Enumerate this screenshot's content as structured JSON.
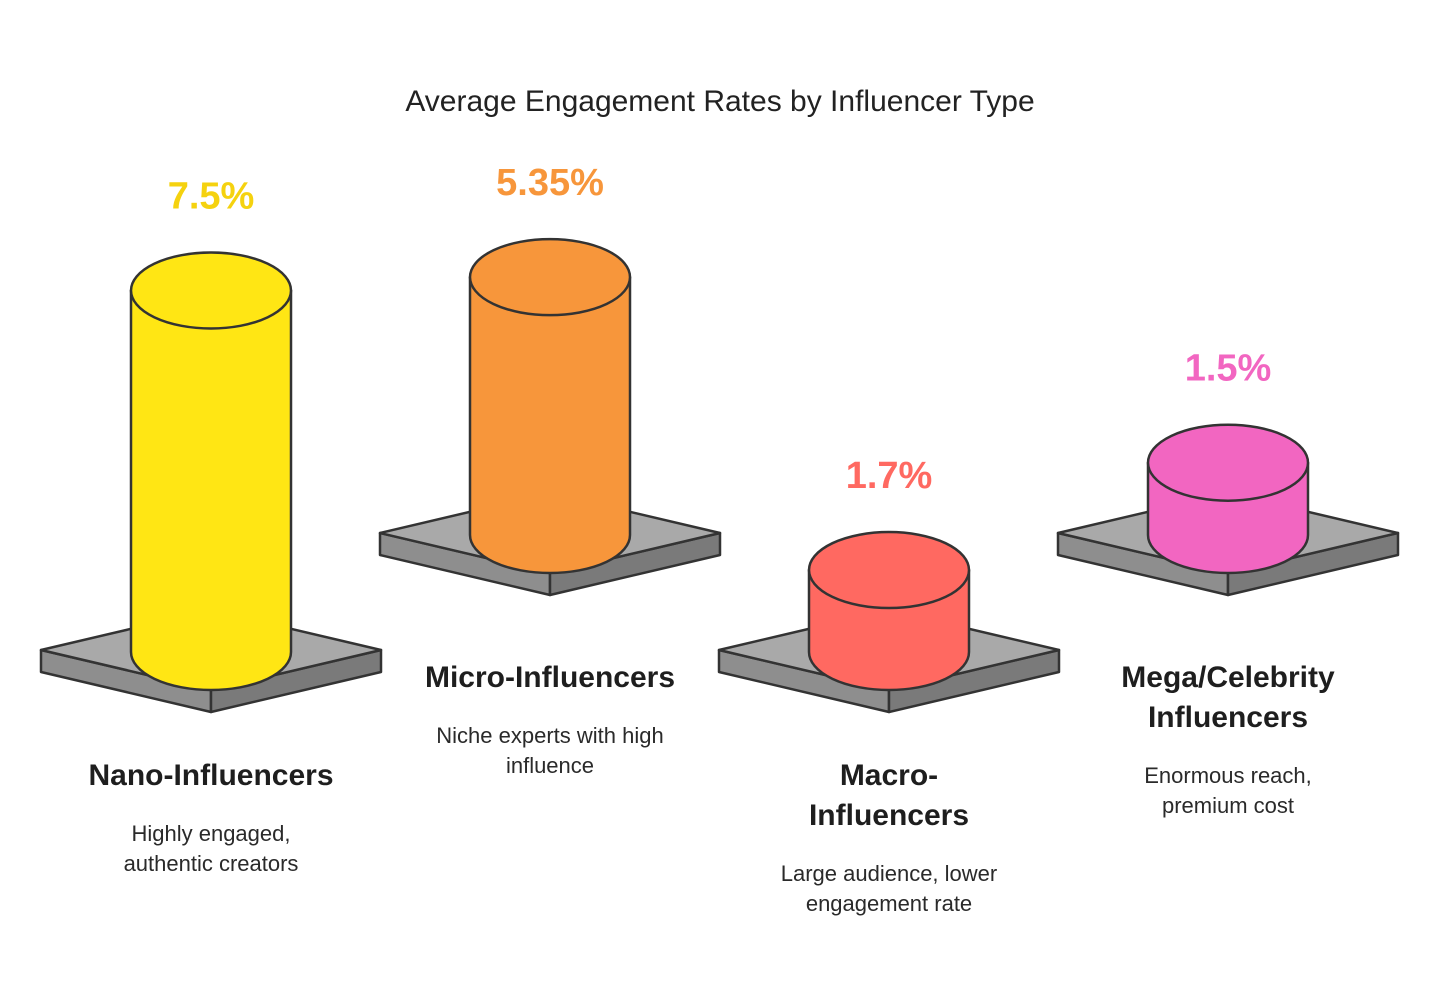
{
  "chart_data": {
    "type": "bar",
    "title": "Average Engagement Rates by Influencer Type",
    "categories": [
      {
        "name_lines": [
          "Nano-Influencers"
        ],
        "desc_lines": [
          "Highly engaged,",
          "authentic creators"
        ]
      },
      {
        "name_lines": [
          "Micro-Influencers"
        ],
        "desc_lines": [
          "Niche experts with high",
          "influence"
        ]
      },
      {
        "name_lines": [
          "Macro-",
          "Influencers"
        ],
        "desc_lines": [
          "Large audience, lower",
          "engagement rate"
        ]
      },
      {
        "name_lines": [
          "Mega/Celebrity",
          "Influencers"
        ],
        "desc_lines": [
          "Enormous reach,",
          "premium cost"
        ]
      }
    ],
    "values": [
      7.5,
      5.35,
      1.7,
      1.5
    ],
    "value_labels": [
      "7.5%",
      "5.35%",
      "1.7%",
      "1.5%"
    ],
    "colors": [
      "#FFE614",
      "#F7963B",
      "#FF6961",
      "#F266C1"
    ],
    "label_colors": [
      "#F5D20F",
      "#F7963B",
      "#FF6961",
      "#F266C1"
    ],
    "base_color": "#A9A9A9",
    "outline_color": "#333333",
    "unit": "%"
  }
}
